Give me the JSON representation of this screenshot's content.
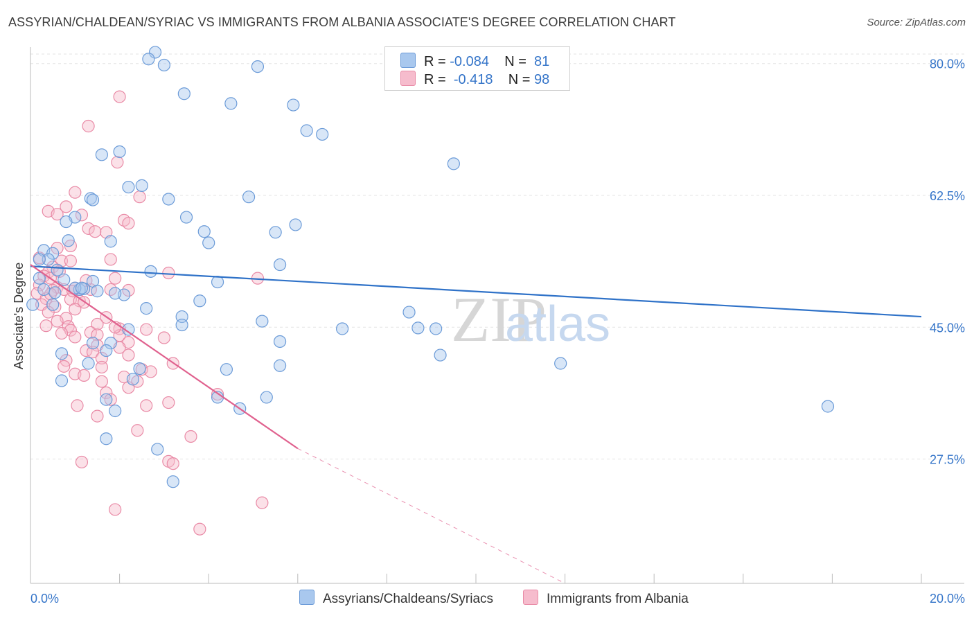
{
  "header": {
    "title": "ASSYRIAN/CHALDEAN/SYRIAC VS IMMIGRANTS FROM ALBANIA ASSOCIATE'S DEGREE CORRELATION CHART",
    "source": "Source: ZipAtlas.com"
  },
  "legend": {
    "rows": [
      {
        "r_label": "R =",
        "r_value": "-0.084",
        "n_label": "N =",
        "n_value": "81"
      },
      {
        "r_label": "R =",
        "r_value": "-0.418",
        "n_label": "N =",
        "n_value": "98"
      }
    ]
  },
  "bottom_legend": {
    "series_a": "Assyrians/Chaldeans/Syriacs",
    "series_b": "Immigrants from Albania"
  },
  "colors": {
    "blue_fill": "#a9c8ee",
    "blue_stroke": "#6b9bd8",
    "blue_line": "#2f72c8",
    "pink_fill": "#f6bccd",
    "pink_stroke": "#e98aa6",
    "pink_line": "#e0618e",
    "axis_text": "#3575c9",
    "grid": "#e3e3e3"
  },
  "chart_data": {
    "type": "scatter",
    "title": "ASSYRIAN/CHALDEAN/SYRIAC VS IMMIGRANTS FROM ALBANIA ASSOCIATE'S DEGREE CORRELATION CHART",
    "xlabel": "",
    "ylabel": "Associate's Degree",
    "xlim": [
      0,
      20
    ],
    "ylim": [
      11,
      82
    ],
    "x_tick_labels": [
      "0.0%",
      "20.0%"
    ],
    "y_ticks": [
      27.5,
      45.0,
      62.5,
      80.0
    ],
    "y_tick_labels": [
      "27.5%",
      "45.0%",
      "62.5%",
      "80.0%"
    ],
    "grid": true,
    "watermark": "ZIPatlas",
    "series": [
      {
        "name": "Assyrians/Chaldeans/Syriacs",
        "color": "#6b9bd8",
        "r": -0.084,
        "n": 81,
        "trend": {
          "x": [
            0,
            20
          ],
          "y": [
            53.1,
            46.4
          ]
        },
        "points": [
          [
            2.8,
            81.5
          ],
          [
            2.65,
            80.6
          ],
          [
            3.0,
            79.8
          ],
          [
            5.1,
            79.6
          ],
          [
            3.45,
            76.0
          ],
          [
            4.5,
            74.7
          ],
          [
            5.9,
            74.5
          ],
          [
            6.2,
            71.1
          ],
          [
            6.55,
            70.6
          ],
          [
            2.0,
            68.3
          ],
          [
            1.6,
            67.9
          ],
          [
            9.5,
            66.7
          ],
          [
            2.5,
            63.8
          ],
          [
            2.2,
            63.6
          ],
          [
            4.9,
            62.3
          ],
          [
            1.35,
            62.1
          ],
          [
            1.4,
            61.9
          ],
          [
            3.1,
            62.0
          ],
          [
            1.0,
            59.6
          ],
          [
            3.5,
            59.6
          ],
          [
            0.8,
            59.0
          ],
          [
            5.95,
            58.6
          ],
          [
            3.9,
            57.7
          ],
          [
            5.5,
            57.6
          ],
          [
            0.85,
            56.5
          ],
          [
            1.8,
            56.4
          ],
          [
            4.0,
            56.2
          ],
          [
            0.3,
            55.2
          ],
          [
            0.5,
            54.8
          ],
          [
            0.4,
            54.0
          ],
          [
            0.2,
            54.0
          ],
          [
            5.6,
            53.3
          ],
          [
            0.6,
            52.6
          ],
          [
            2.7,
            52.4
          ],
          [
            0.2,
            51.5
          ],
          [
            1.4,
            51.1
          ],
          [
            0.75,
            51.3
          ],
          [
            4.2,
            51.0
          ],
          [
            1.1,
            50.0
          ],
          [
            1.2,
            50.1
          ],
          [
            1.0,
            50.2
          ],
          [
            1.5,
            49.8
          ],
          [
            0.3,
            50.0
          ],
          [
            2.1,
            49.3
          ],
          [
            0.5,
            48.0
          ],
          [
            3.8,
            48.5
          ],
          [
            0.05,
            48.0
          ],
          [
            2.6,
            47.5
          ],
          [
            3.4,
            46.4
          ],
          [
            5.2,
            45.8
          ],
          [
            3.4,
            45.3
          ],
          [
            7.0,
            44.8
          ],
          [
            2.2,
            44.7
          ],
          [
            8.7,
            44.9
          ],
          [
            9.1,
            44.8
          ],
          [
            5.6,
            43.1
          ],
          [
            1.4,
            42.9
          ],
          [
            1.8,
            42.9
          ],
          [
            1.7,
            41.9
          ],
          [
            0.7,
            41.5
          ],
          [
            9.2,
            41.3
          ],
          [
            1.3,
            40.2
          ],
          [
            11.9,
            40.2
          ],
          [
            2.45,
            39.5
          ],
          [
            4.4,
            39.4
          ],
          [
            5.6,
            39.9
          ],
          [
            2.3,
            38.1
          ],
          [
            0.7,
            37.9
          ],
          [
            4.2,
            35.7
          ],
          [
            5.3,
            35.7
          ],
          [
            1.7,
            35.4
          ],
          [
            17.9,
            34.5
          ],
          [
            4.7,
            34.2
          ],
          [
            1.9,
            33.9
          ],
          [
            1.7,
            30.2
          ],
          [
            2.85,
            28.8
          ],
          [
            3.2,
            24.5
          ],
          [
            8.5,
            47.0
          ],
          [
            1.9,
            49.5
          ],
          [
            1.15,
            50.2
          ],
          [
            0.55,
            49.6
          ]
        ]
      },
      {
        "name": "Immigrants from Albania",
        "color": "#e98aa6",
        "r": -0.418,
        "n": 98,
        "trend": {
          "x": [
            0,
            6.0
          ],
          "y": [
            53.3,
            28.9
          ]
        },
        "trend_dashed": {
          "x": [
            6.0,
            12.0
          ],
          "y": [
            28.9,
            4.5
          ]
        },
        "points": [
          [
            2.0,
            75.6
          ],
          [
            1.3,
            71.7
          ],
          [
            1.95,
            66.9
          ],
          [
            1.0,
            62.9
          ],
          [
            2.45,
            62.3
          ],
          [
            0.4,
            60.4
          ],
          [
            0.6,
            60.0
          ],
          [
            0.8,
            61.0
          ],
          [
            1.15,
            59.9
          ],
          [
            2.1,
            59.2
          ],
          [
            2.2,
            58.8
          ],
          [
            1.3,
            58.1
          ],
          [
            1.45,
            57.7
          ],
          [
            1.7,
            57.6
          ],
          [
            0.9,
            55.8
          ],
          [
            0.6,
            55.5
          ],
          [
            1.8,
            54.0
          ],
          [
            0.2,
            54.2
          ],
          [
            0.7,
            53.8
          ],
          [
            0.9,
            53.8
          ],
          [
            0.5,
            53.0
          ],
          [
            0.65,
            52.4
          ],
          [
            0.4,
            52.3
          ],
          [
            3.1,
            52.2
          ],
          [
            0.3,
            51.8
          ],
          [
            0.45,
            51.5
          ],
          [
            1.9,
            51.5
          ],
          [
            5.1,
            51.5
          ],
          [
            0.2,
            50.6
          ],
          [
            0.6,
            50.3
          ],
          [
            0.75,
            50.0
          ],
          [
            1.0,
            50.2
          ],
          [
            0.5,
            49.9
          ],
          [
            1.35,
            50.0
          ],
          [
            1.8,
            50.0
          ],
          [
            2.2,
            49.9
          ],
          [
            0.15,
            49.5
          ],
          [
            0.35,
            48.8
          ],
          [
            0.9,
            48.7
          ],
          [
            1.1,
            48.5
          ],
          [
            1.2,
            48.3
          ],
          [
            0.25,
            48.0
          ],
          [
            0.55,
            47.7
          ],
          [
            1.0,
            47.4
          ],
          [
            1.7,
            46.3
          ],
          [
            0.8,
            46.2
          ],
          [
            0.6,
            45.8
          ],
          [
            1.5,
            45.4
          ],
          [
            0.35,
            45.2
          ],
          [
            0.85,
            45.1
          ],
          [
            2.0,
            44.8
          ],
          [
            2.6,
            44.7
          ],
          [
            0.9,
            44.6
          ],
          [
            1.35,
            44.3
          ],
          [
            0.7,
            44.2
          ],
          [
            2.0,
            43.9
          ],
          [
            1.5,
            44.0
          ],
          [
            1.0,
            43.7
          ],
          [
            3.0,
            43.6
          ],
          [
            2.2,
            43.0
          ],
          [
            1.5,
            42.6
          ],
          [
            2.0,
            42.3
          ],
          [
            1.25,
            41.9
          ],
          [
            1.4,
            41.7
          ],
          [
            2.2,
            41.3
          ],
          [
            1.6,
            40.9
          ],
          [
            0.8,
            40.6
          ],
          [
            3.2,
            40.2
          ],
          [
            0.75,
            39.8
          ],
          [
            1.6,
            39.7
          ],
          [
            2.5,
            39.4
          ],
          [
            2.7,
            39.1
          ],
          [
            1.0,
            38.8
          ],
          [
            1.2,
            38.6
          ],
          [
            2.1,
            38.4
          ],
          [
            1.6,
            37.8
          ],
          [
            2.4,
            37.8
          ],
          [
            2.2,
            37.0
          ],
          [
            1.7,
            36.3
          ],
          [
            4.2,
            36.1
          ],
          [
            1.8,
            35.4
          ],
          [
            3.1,
            35.0
          ],
          [
            1.05,
            34.6
          ],
          [
            2.6,
            34.6
          ],
          [
            1.5,
            33.2
          ],
          [
            2.4,
            31.3
          ],
          [
            3.6,
            30.5
          ],
          [
            3.1,
            27.2
          ],
          [
            3.2,
            26.9
          ],
          [
            1.15,
            27.1
          ],
          [
            5.2,
            21.7
          ],
          [
            1.9,
            20.8
          ],
          [
            3.8,
            18.2
          ],
          [
            0.45,
            49.4
          ],
          [
            0.95,
            49.8
          ],
          [
            1.25,
            51.2
          ],
          [
            0.4,
            47.0
          ],
          [
            1.9,
            45.0
          ]
        ]
      }
    ]
  }
}
